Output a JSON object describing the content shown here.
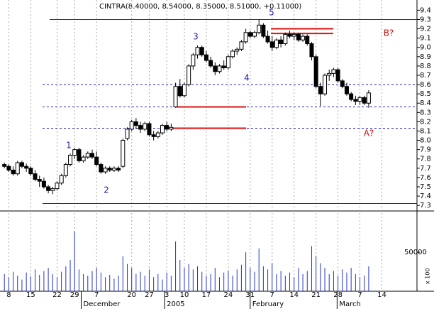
{
  "chart_data": [
    {
      "type": "candlestick",
      "title": "CINTRA(8.40000, 8.54000, 8.35000, 8.51000, +0.11000)",
      "x": [
        0,
        1,
        2,
        3,
        4,
        5,
        6,
        7,
        8,
        9,
        10,
        11,
        12,
        13,
        14,
        15,
        16,
        17,
        18,
        19,
        20,
        21,
        22,
        23,
        24,
        25,
        26,
        27,
        28,
        29,
        30,
        31,
        32,
        33,
        34,
        35,
        36,
        37,
        38,
        39,
        40,
        41,
        42,
        43,
        44,
        45,
        46,
        47,
        48,
        49,
        50,
        51,
        52,
        53,
        54,
        55,
        56,
        57,
        58,
        59,
        60,
        61,
        62,
        63,
        64,
        65,
        66,
        67,
        68,
        69,
        70,
        71,
        72,
        73,
        74,
        75,
        76,
        77,
        78,
        79,
        80,
        81,
        82,
        83
      ],
      "open": [
        7.74,
        7.72,
        7.68,
        7.64,
        7.76,
        7.72,
        7.7,
        7.64,
        7.58,
        7.56,
        7.5,
        7.46,
        7.48,
        7.54,
        7.62,
        7.74,
        7.84,
        7.9,
        7.78,
        7.82,
        7.86,
        7.82,
        7.74,
        7.66,
        7.7,
        7.68,
        7.7,
        7.72,
        8.02,
        8.12,
        8.2,
        8.16,
        8.12,
        8.18,
        8.06,
        8.04,
        8.08,
        8.16,
        8.12,
        8.36,
        8.58,
        8.48,
        8.6,
        8.8,
        8.92,
        9.0,
        8.92,
        8.86,
        8.8,
        8.74,
        8.8,
        8.78,
        8.9,
        8.96,
        8.98,
        9.06,
        9.16,
        9.12,
        9.16,
        9.24,
        9.12,
        9.06,
        9.0,
        9.08,
        9.04,
        9.14,
        9.12,
        9.14,
        9.08,
        9.12,
        9.04,
        8.9,
        8.58,
        8.5,
        8.7,
        8.72,
        8.76,
        8.64,
        8.58,
        8.5,
        8.44,
        8.42,
        8.46,
        8.4
      ],
      "high": [
        7.76,
        7.74,
        7.72,
        7.78,
        7.78,
        7.75,
        7.72,
        7.68,
        7.62,
        7.6,
        7.52,
        7.5,
        7.56,
        7.64,
        7.76,
        7.86,
        7.92,
        7.92,
        7.84,
        7.88,
        7.9,
        7.88,
        7.76,
        7.72,
        7.72,
        7.72,
        7.72,
        8.02,
        8.14,
        8.22,
        8.24,
        8.2,
        8.2,
        8.2,
        8.1,
        8.1,
        8.18,
        8.2,
        8.18,
        8.62,
        8.66,
        8.62,
        8.82,
        8.94,
        9.02,
        9.02,
        8.96,
        8.9,
        8.84,
        8.82,
        8.86,
        8.92,
        8.98,
        9.0,
        9.08,
        9.2,
        9.18,
        9.18,
        9.3,
        9.26,
        9.18,
        9.12,
        9.1,
        9.12,
        9.16,
        9.18,
        9.16,
        9.16,
        9.14,
        9.14,
        9.06,
        8.92,
        8.62,
        8.72,
        8.76,
        8.78,
        8.78,
        8.66,
        8.62,
        8.52,
        8.48,
        8.48,
        8.48,
        8.54
      ],
      "low": [
        7.7,
        7.66,
        7.62,
        7.62,
        7.7,
        7.66,
        7.62,
        7.56,
        7.5,
        7.48,
        7.43,
        7.42,
        7.46,
        7.52,
        7.6,
        7.72,
        7.8,
        7.76,
        7.76,
        7.8,
        7.8,
        7.72,
        7.64,
        7.64,
        7.66,
        7.66,
        7.66,
        7.7,
        8.0,
        8.1,
        8.12,
        8.08,
        8.1,
        8.04,
        8.0,
        8.02,
        8.06,
        8.1,
        8.1,
        8.35,
        8.46,
        8.46,
        8.58,
        8.76,
        8.88,
        8.9,
        8.84,
        8.78,
        8.7,
        8.72,
        8.76,
        8.76,
        8.88,
        8.92,
        8.96,
        9.04,
        9.1,
        9.1,
        9.14,
        9.1,
        9.04,
        8.96,
        8.98,
        9.0,
        9.02,
        9.1,
        9.08,
        9.06,
        9.06,
        9.02,
        8.86,
        8.56,
        8.37,
        8.48,
        8.64,
        8.68,
        8.62,
        8.56,
        8.48,
        8.42,
        8.38,
        8.38,
        8.38,
        8.35
      ],
      "close": [
        7.72,
        7.68,
        7.64,
        7.76,
        7.72,
        7.7,
        7.64,
        7.58,
        7.56,
        7.5,
        7.46,
        7.48,
        7.54,
        7.62,
        7.74,
        7.84,
        7.9,
        7.78,
        7.82,
        7.86,
        7.82,
        7.74,
        7.66,
        7.7,
        7.68,
        7.7,
        7.68,
        8.0,
        8.12,
        8.2,
        8.16,
        8.12,
        8.18,
        8.06,
        8.04,
        8.08,
        8.16,
        8.12,
        8.14,
        8.58,
        8.48,
        8.6,
        8.8,
        8.92,
        9.0,
        8.92,
        8.86,
        8.8,
        8.74,
        8.8,
        8.78,
        8.9,
        8.96,
        8.98,
        9.06,
        9.16,
        9.12,
        9.16,
        9.24,
        9.12,
        9.06,
        9.0,
        9.08,
        9.04,
        9.14,
        9.12,
        9.14,
        9.08,
        9.12,
        9.04,
        8.9,
        8.58,
        8.5,
        8.7,
        8.72,
        8.76,
        8.64,
        8.58,
        8.5,
        8.44,
        8.42,
        8.46,
        8.4,
        8.51
      ],
      "xlim": [
        -1,
        94
      ],
      "xticks": [
        {
          "value": 1,
          "label": "8"
        },
        {
          "value": 6,
          "label": "15"
        },
        {
          "value": 12,
          "label": "22"
        },
        {
          "value": 16,
          "label": "29"
        },
        {
          "value": 21,
          "label": "7"
        },
        {
          "value": 29,
          "label": "20"
        },
        {
          "value": 33,
          "label": "27"
        },
        {
          "value": 37,
          "label": "3"
        },
        {
          "value": 41,
          "label": "10"
        },
        {
          "value": 46,
          "label": "17"
        },
        {
          "value": 51,
          "label": "24"
        },
        {
          "value": 56,
          "label": "31"
        },
        {
          "value": 61,
          "label": "7"
        },
        {
          "value": 66,
          "label": "14"
        },
        {
          "value": 71,
          "label": "21"
        },
        {
          "value": 76,
          "label": "28"
        },
        {
          "value": 81,
          "label": "7"
        },
        {
          "value": 86,
          "label": "14"
        }
      ],
      "month_labels": [
        {
          "value": 17.5,
          "label": "December"
        },
        {
          "value": 36.5,
          "label": "2005"
        },
        {
          "value": 56,
          "label": "February"
        },
        {
          "value": 75.8,
          "label": "March"
        }
      ],
      "ylim": [
        7.24,
        9.51
      ],
      "yticks": [
        7.3,
        7.4,
        7.5,
        7.6,
        7.7,
        7.8,
        7.9,
        {
          "value": 8,
          "label": "8.0"
        },
        8.1,
        8.2,
        8.3,
        8.4,
        8.5,
        8.6,
        8.7,
        8.8,
        8.9,
        {
          "value": 9,
          "label": "9.0"
        },
        9.1,
        9.2,
        9.3,
        9.4
      ],
      "hlines_solid": [
        9.3,
        7.32
      ],
      "hlines_dashed": [
        8.6,
        8.36,
        8.13
      ],
      "red_lines": [
        8.36,
        8.13,
        9.2,
        9.15
      ],
      "annotations": [
        "1",
        "2",
        "3",
        "4",
        "5",
        "B?",
        "A?"
      ]
    },
    {
      "type": "volume",
      "values": [
        22000,
        18000,
        25000,
        20000,
        15000,
        24000,
        19000,
        28000,
        21000,
        26000,
        30000,
        22000,
        18000,
        25000,
        32000,
        40000,
        77000,
        28000,
        22000,
        20000,
        26000,
        30000,
        24000,
        18000,
        21000,
        16000,
        20000,
        45000,
        35000,
        30000,
        22000,
        25000,
        20000,
        28000,
        18000,
        22000,
        15000,
        24000,
        20000,
        64000,
        40000,
        30000,
        35000,
        28000,
        32000,
        25000,
        20000,
        22000,
        30000,
        18000,
        24000,
        26000,
        20000,
        28000,
        34000,
        50000,
        30000,
        25000,
        55000,
        32000,
        28000,
        36000,
        22000,
        26000,
        20000,
        24000,
        18000,
        30000,
        22000,
        26000,
        58000,
        45000,
        36000,
        30000,
        22000,
        26000,
        20000,
        28000,
        24000,
        30000,
        22000,
        18000,
        20000,
        32000
      ],
      "color": "#2233cc",
      "ylim": [
        0,
        103000
      ],
      "yticks": [
        50000
      ],
      "unit_note": "x 100"
    }
  ]
}
